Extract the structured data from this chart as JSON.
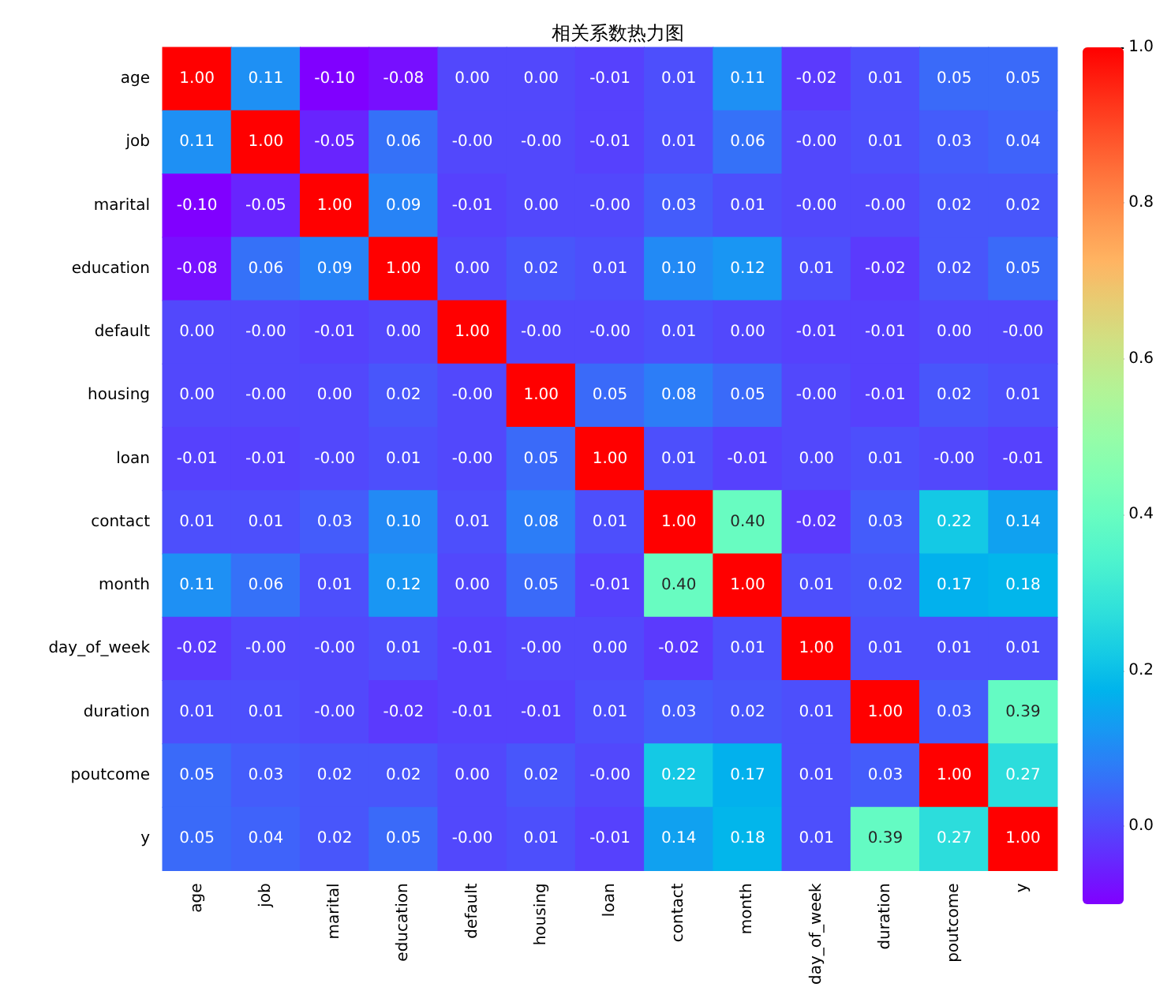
{
  "chart_data": {
    "type": "heatmap",
    "title": "相关系数热力图",
    "categories": [
      "age",
      "job",
      "marital",
      "education",
      "default",
      "housing",
      "loan",
      "contact",
      "month",
      "day_of_week",
      "duration",
      "poutcome",
      "y"
    ],
    "y_categories": [
      "age",
      "job",
      "marital",
      "education",
      "default",
      "housing",
      "loan",
      "contact",
      "month",
      "day_of_week",
      "duration",
      "poutcome",
      "y"
    ],
    "cells": [
      [
        1.0,
        0.11,
        -0.1,
        -0.08,
        0.0,
        0.0,
        -0.01,
        0.01,
        0.11,
        -0.02,
        0.01,
        0.05,
        0.05
      ],
      [
        0.11,
        1.0,
        -0.05,
        0.06,
        0.0,
        0.0,
        -0.01,
        0.01,
        0.06,
        0.0,
        0.01,
        0.03,
        0.04
      ],
      [
        -0.1,
        -0.05,
        1.0,
        0.09,
        -0.01,
        0.0,
        0.0,
        0.03,
        0.01,
        0.0,
        0.0,
        0.02,
        0.02
      ],
      [
        -0.08,
        0.06,
        0.09,
        1.0,
        0.0,
        0.02,
        0.01,
        0.1,
        0.12,
        0.01,
        -0.02,
        0.02,
        0.05
      ],
      [
        0.0,
        0.0,
        -0.01,
        0.0,
        1.0,
        0.0,
        0.0,
        0.01,
        0.0,
        -0.01,
        -0.01,
        0.0,
        0.0
      ],
      [
        0.0,
        0.0,
        0.0,
        0.02,
        0.0,
        1.0,
        0.05,
        0.08,
        0.05,
        0.0,
        -0.01,
        0.02,
        0.01
      ],
      [
        -0.01,
        -0.01,
        0.0,
        0.01,
        0.0,
        0.05,
        1.0,
        0.01,
        -0.01,
        0.0,
        0.01,
        0.0,
        -0.01
      ],
      [
        0.01,
        0.01,
        0.03,
        0.1,
        0.01,
        0.08,
        0.01,
        1.0,
        0.4,
        -0.02,
        0.03,
        0.22,
        0.14
      ],
      [
        0.11,
        0.06,
        0.01,
        0.12,
        0.0,
        0.05,
        -0.01,
        0.4,
        1.0,
        0.01,
        0.02,
        0.17,
        0.18
      ],
      [
        -0.02,
        0.0,
        0.0,
        0.01,
        -0.01,
        0.0,
        0.0,
        -0.02,
        0.01,
        1.0,
        0.01,
        0.01,
        0.01
      ],
      [
        0.01,
        0.01,
        0.0,
        -0.02,
        -0.01,
        -0.01,
        0.01,
        0.03,
        0.02,
        0.01,
        1.0,
        0.03,
        0.39
      ],
      [
        0.05,
        0.03,
        0.02,
        0.02,
        0.0,
        0.02,
        0.0,
        0.22,
        0.17,
        0.01,
        0.03,
        1.0,
        0.27
      ],
      [
        0.05,
        0.04,
        0.02,
        0.05,
        0.0,
        0.01,
        -0.01,
        0.14,
        0.18,
        0.01,
        0.39,
        0.27,
        1.0
      ]
    ],
    "cell_labels": [
      [
        "1.00",
        "0.11",
        "-0.10",
        "-0.08",
        "0.00",
        "0.00",
        "-0.01",
        "0.01",
        "0.11",
        "-0.02",
        "0.01",
        "0.05",
        "0.05"
      ],
      [
        "0.11",
        "1.00",
        "-0.05",
        "0.06",
        "-0.00",
        "-0.00",
        "-0.01",
        "0.01",
        "0.06",
        "-0.00",
        "0.01",
        "0.03",
        "0.04"
      ],
      [
        "-0.10",
        "-0.05",
        "1.00",
        "0.09",
        "-0.01",
        "0.00",
        "-0.00",
        "0.03",
        "0.01",
        "-0.00",
        "-0.00",
        "0.02",
        "0.02"
      ],
      [
        "-0.08",
        "0.06",
        "0.09",
        "1.00",
        "0.00",
        "0.02",
        "0.01",
        "0.10",
        "0.12",
        "0.01",
        "-0.02",
        "0.02",
        "0.05"
      ],
      [
        "0.00",
        "-0.00",
        "-0.01",
        "0.00",
        "1.00",
        "-0.00",
        "-0.00",
        "0.01",
        "0.00",
        "-0.01",
        "-0.01",
        "0.00",
        "-0.00"
      ],
      [
        "0.00",
        "-0.00",
        "0.00",
        "0.02",
        "-0.00",
        "1.00",
        "0.05",
        "0.08",
        "0.05",
        "-0.00",
        "-0.01",
        "0.02",
        "0.01"
      ],
      [
        "-0.01",
        "-0.01",
        "-0.00",
        "0.01",
        "-0.00",
        "0.05",
        "1.00",
        "0.01",
        "-0.01",
        "0.00",
        "0.01",
        "-0.00",
        "-0.01"
      ],
      [
        "0.01",
        "0.01",
        "0.03",
        "0.10",
        "0.01",
        "0.08",
        "0.01",
        "1.00",
        "0.40",
        "-0.02",
        "0.03",
        "0.22",
        "0.14"
      ],
      [
        "0.11",
        "0.06",
        "0.01",
        "0.12",
        "0.00",
        "0.05",
        "-0.01",
        "0.40",
        "1.00",
        "0.01",
        "0.02",
        "0.17",
        "0.18"
      ],
      [
        "-0.02",
        "-0.00",
        "-0.00",
        "0.01",
        "-0.01",
        "-0.00",
        "0.00",
        "-0.02",
        "0.01",
        "1.00",
        "0.01",
        "0.01",
        "0.01"
      ],
      [
        "0.01",
        "0.01",
        "-0.00",
        "-0.02",
        "-0.01",
        "-0.01",
        "0.01",
        "0.03",
        "0.02",
        "0.01",
        "1.00",
        "0.03",
        "0.39"
      ],
      [
        "0.05",
        "0.03",
        "0.02",
        "0.02",
        "0.00",
        "0.02",
        "-0.00",
        "0.22",
        "0.17",
        "0.01",
        "0.03",
        "1.00",
        "0.27"
      ],
      [
        "0.05",
        "0.04",
        "0.02",
        "0.05",
        "-0.00",
        "0.01",
        "-0.01",
        "0.14",
        "0.18",
        "0.01",
        "0.39",
        "0.27",
        "1.00"
      ]
    ],
    "clim": [
      -0.1,
      1.0
    ],
    "cticks": [
      {
        "value": 0,
        "label": "0.0"
      },
      {
        "value": 0.2,
        "label": "0.2"
      },
      {
        "value": 0.4,
        "label": "0.4"
      },
      {
        "value": 0.6,
        "label": "0.6"
      },
      {
        "value": 0.8,
        "label": "0.8"
      },
      {
        "value": 1,
        "label": "1.0"
      }
    ]
  }
}
